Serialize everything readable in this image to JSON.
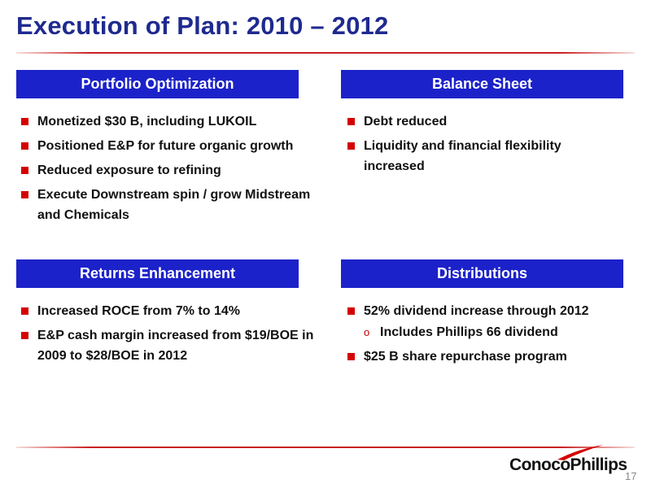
{
  "slide": {
    "title": "Execution of Plan: 2010 – 2012",
    "page_number": "17"
  },
  "sections": {
    "portfolio": {
      "header": "Portfolio Optimization",
      "items": [
        "Monetized $30 B, including LUKOIL",
        "Positioned E&P for future organic growth",
        "Reduced exposure to refining",
        "Execute Downstream spin / grow Midstream and Chemicals"
      ]
    },
    "balance": {
      "header": "Balance Sheet",
      "items": [
        "Debt reduced",
        "Liquidity and financial flexibility increased"
      ]
    },
    "returns": {
      "header": "Returns Enhancement",
      "items": [
        "Increased ROCE from 7% to 14%",
        "E&P cash margin increased from $19/BOE in 2009 to $28/BOE in 2012"
      ]
    },
    "distributions": {
      "header": "Distributions",
      "item1": "52% dividend increase through 2012",
      "sub1": "Includes Phillips 66 dividend",
      "item2": "$25 B share repurchase program"
    }
  },
  "footer": {
    "logo_text": "ConocoPhillips"
  },
  "colors": {
    "title": "#1f2a8f",
    "header_bg": "#1c22c9",
    "bullet": "#d40000",
    "rule": "#c8201e"
  }
}
